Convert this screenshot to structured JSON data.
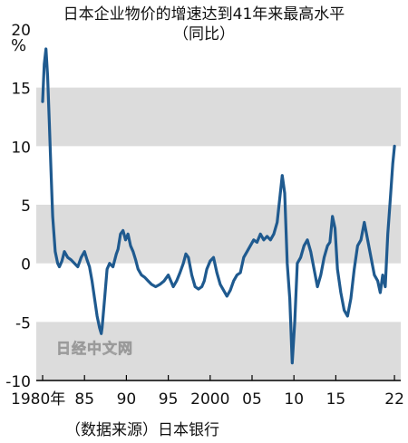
{
  "chart_data": {
    "type": "line",
    "title": "日本企业物价的增速达到41年来最高水平",
    "subtitle": "（同比）",
    "ylabel": "%",
    "ylim": [
      -10,
      20
    ],
    "xlim": [
      1980,
      2022.1
    ],
    "yticks": [
      20,
      15,
      10,
      5,
      0,
      -5,
      -10
    ],
    "xticks": [
      {
        "value": 1980,
        "label": "1980年"
      },
      {
        "value": 1985,
        "label": "85"
      },
      {
        "value": 1990,
        "label": "90"
      },
      {
        "value": 1995,
        "label": "95"
      },
      {
        "value": 2000,
        "label": "2000"
      },
      {
        "value": 2005,
        "label": "05"
      },
      {
        "value": 2010,
        "label": "10"
      },
      {
        "value": 2015,
        "label": "15"
      },
      {
        "value": 2022,
        "label": "22"
      }
    ],
    "shaded_bands": [
      [
        10,
        15
      ],
      [
        0,
        5
      ],
      [
        -10,
        -5
      ]
    ],
    "line_color": "#1f5a8f",
    "band_color": "#dcdcdc",
    "source": "（数据来源）日本银行",
    "watermark": "日经中文网",
    "series": [
      {
        "x": [
          1980.0,
          1980.2,
          1980.4,
          1980.6,
          1980.8,
          1981.0,
          1981.2,
          1981.5,
          1981.8,
          1982.0,
          1982.3,
          1982.6,
          1983.0,
          1983.4,
          1983.8,
          1984.2,
          1984.6,
          1985.0,
          1985.3,
          1985.6,
          1985.9,
          1986.2,
          1986.5,
          1986.8,
          1987.0,
          1987.1,
          1987.4,
          1987.7,
          1988.0,
          1988.4,
          1988.8,
          1989.0,
          1989.3,
          1989.6,
          1989.9,
          1990.2,
          1990.5,
          1990.8,
          1991.1,
          1991.4,
          1991.8,
          1992.2,
          1992.6,
          1993.0,
          1993.5,
          1994.0,
          1994.5,
          1995.0,
          1995.3,
          1995.6,
          1996.0,
          1996.4,
          1996.8,
          1997.1,
          1997.4,
          1997.8,
          1998.2,
          1998.6,
          1999.0,
          1999.3,
          1999.6,
          2000.0,
          2000.4,
          2000.8,
          2001.2,
          2001.6,
          2002.0,
          2002.4,
          2002.8,
          2003.2,
          2003.6,
          2004.0,
          2004.4,
          2004.8,
          2005.2,
          2005.6,
          2006.0,
          2006.4,
          2006.8,
          2007.2,
          2007.6,
          2008.0,
          2008.3,
          2008.6,
          2008.9,
          2009.2,
          2009.5,
          2009.8,
          2010.1,
          2010.4,
          2010.8,
          2011.2,
          2011.6,
          2012.0,
          2012.4,
          2012.8,
          2013.2,
          2013.6,
          2014.0,
          2014.3,
          2014.6,
          2014.9,
          2015.2,
          2015.6,
          2016.0,
          2016.4,
          2016.8,
          2017.2,
          2017.6,
          2018.0,
          2018.4,
          2018.8,
          2019.2,
          2019.6,
          2020.0,
          2020.3,
          2020.6,
          2020.9,
          2021.2,
          2021.5,
          2021.8,
          2022.0
        ],
        "y": [
          13.8,
          17.0,
          18.3,
          16.0,
          12.0,
          8.0,
          4.0,
          1.0,
          0.0,
          -0.3,
          0.2,
          1.0,
          0.5,
          0.3,
          0.0,
          -0.3,
          0.5,
          1.0,
          0.3,
          -0.3,
          -1.5,
          -3.0,
          -4.5,
          -5.5,
          -6.0,
          -5.5,
          -3.0,
          -0.5,
          0.0,
          -0.3,
          0.8,
          1.2,
          2.5,
          2.8,
          2.0,
          2.5,
          1.5,
          1.0,
          0.3,
          -0.5,
          -1.0,
          -1.2,
          -1.5,
          -1.8,
          -2.0,
          -1.8,
          -1.5,
          -1.0,
          -1.5,
          -2.0,
          -1.5,
          -0.8,
          0.0,
          0.8,
          0.5,
          -1.0,
          -2.0,
          -2.2,
          -2.0,
          -1.5,
          -0.5,
          0.2,
          0.5,
          -0.8,
          -1.8,
          -2.3,
          -2.8,
          -2.3,
          -1.5,
          -1.0,
          -0.8,
          0.5,
          1.0,
          1.5,
          2.0,
          1.8,
          2.5,
          2.0,
          2.3,
          2.0,
          2.5,
          3.5,
          5.5,
          7.5,
          6.0,
          0.0,
          -3.0,
          -8.5,
          -5.0,
          0.0,
          0.5,
          1.5,
          2.0,
          1.0,
          -0.5,
          -2.0,
          -1.0,
          0.5,
          1.5,
          1.8,
          4.0,
          3.0,
          -0.5,
          -2.5,
          -4.0,
          -4.5,
          -3.0,
          -0.5,
          1.5,
          2.0,
          3.5,
          2.0,
          0.5,
          -1.0,
          -1.5,
          -2.5,
          -1.0,
          -2.0,
          2.5,
          5.5,
          8.5,
          10.0
        ]
      }
    ]
  }
}
